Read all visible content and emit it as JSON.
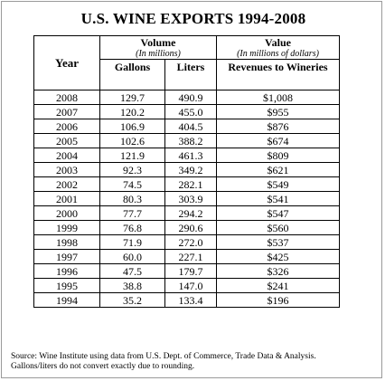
{
  "title": "U.S. WINE EXPORTS 1994-2008",
  "headers": {
    "year": "Year",
    "volume": "Volume",
    "volume_unit": "(In millions)",
    "value": "Value",
    "value_unit": "(In millions of dollars)",
    "gallons": "Gallons",
    "liters": "Liters",
    "revenues": "Revenues to Wineries"
  },
  "rows": [
    {
      "year": "2008",
      "gallons": "129.7",
      "liters": "490.9",
      "revenue": "$1,008"
    },
    {
      "year": "2007",
      "gallons": "120.2",
      "liters": "455.0",
      "revenue": "$955"
    },
    {
      "year": "2006",
      "gallons": "106.9",
      "liters": "404.5",
      "revenue": "$876"
    },
    {
      "year": "2005",
      "gallons": "102.6",
      "liters": "388.2",
      "revenue": "$674"
    },
    {
      "year": "2004",
      "gallons": "121.9",
      "liters": "461.3",
      "revenue": "$809"
    },
    {
      "year": "2003",
      "gallons": "92.3",
      "liters": "349.2",
      "revenue": "$621"
    },
    {
      "year": "2002",
      "gallons": "74.5",
      "liters": "282.1",
      "revenue": "$549"
    },
    {
      "year": "2001",
      "gallons": "80.3",
      "liters": "303.9",
      "revenue": "$541"
    },
    {
      "year": "2000",
      "gallons": "77.7",
      "liters": "294.2",
      "revenue": "$547"
    },
    {
      "year": "1999",
      "gallons": "76.8",
      "liters": "290.6",
      "revenue": "$560"
    },
    {
      "year": "1998",
      "gallons": "71.9",
      "liters": "272.0",
      "revenue": "$537"
    },
    {
      "year": "1997",
      "gallons": "60.0",
      "liters": "227.1",
      "revenue": "$425"
    },
    {
      "year": "1996",
      "gallons": "47.5",
      "liters": "179.7",
      "revenue": "$326"
    },
    {
      "year": "1995",
      "gallons": "38.8",
      "liters": "147.0",
      "revenue": "$241"
    },
    {
      "year": "1994",
      "gallons": "35.2",
      "liters": "133.4",
      "revenue": "$196"
    }
  ],
  "source_note": "Source: Wine Institute using data from U.S. Dept. of Commerce, Trade Data & Analysis.",
  "conversion_note": "Gallons/liters do not convert exactly due to rounding."
}
